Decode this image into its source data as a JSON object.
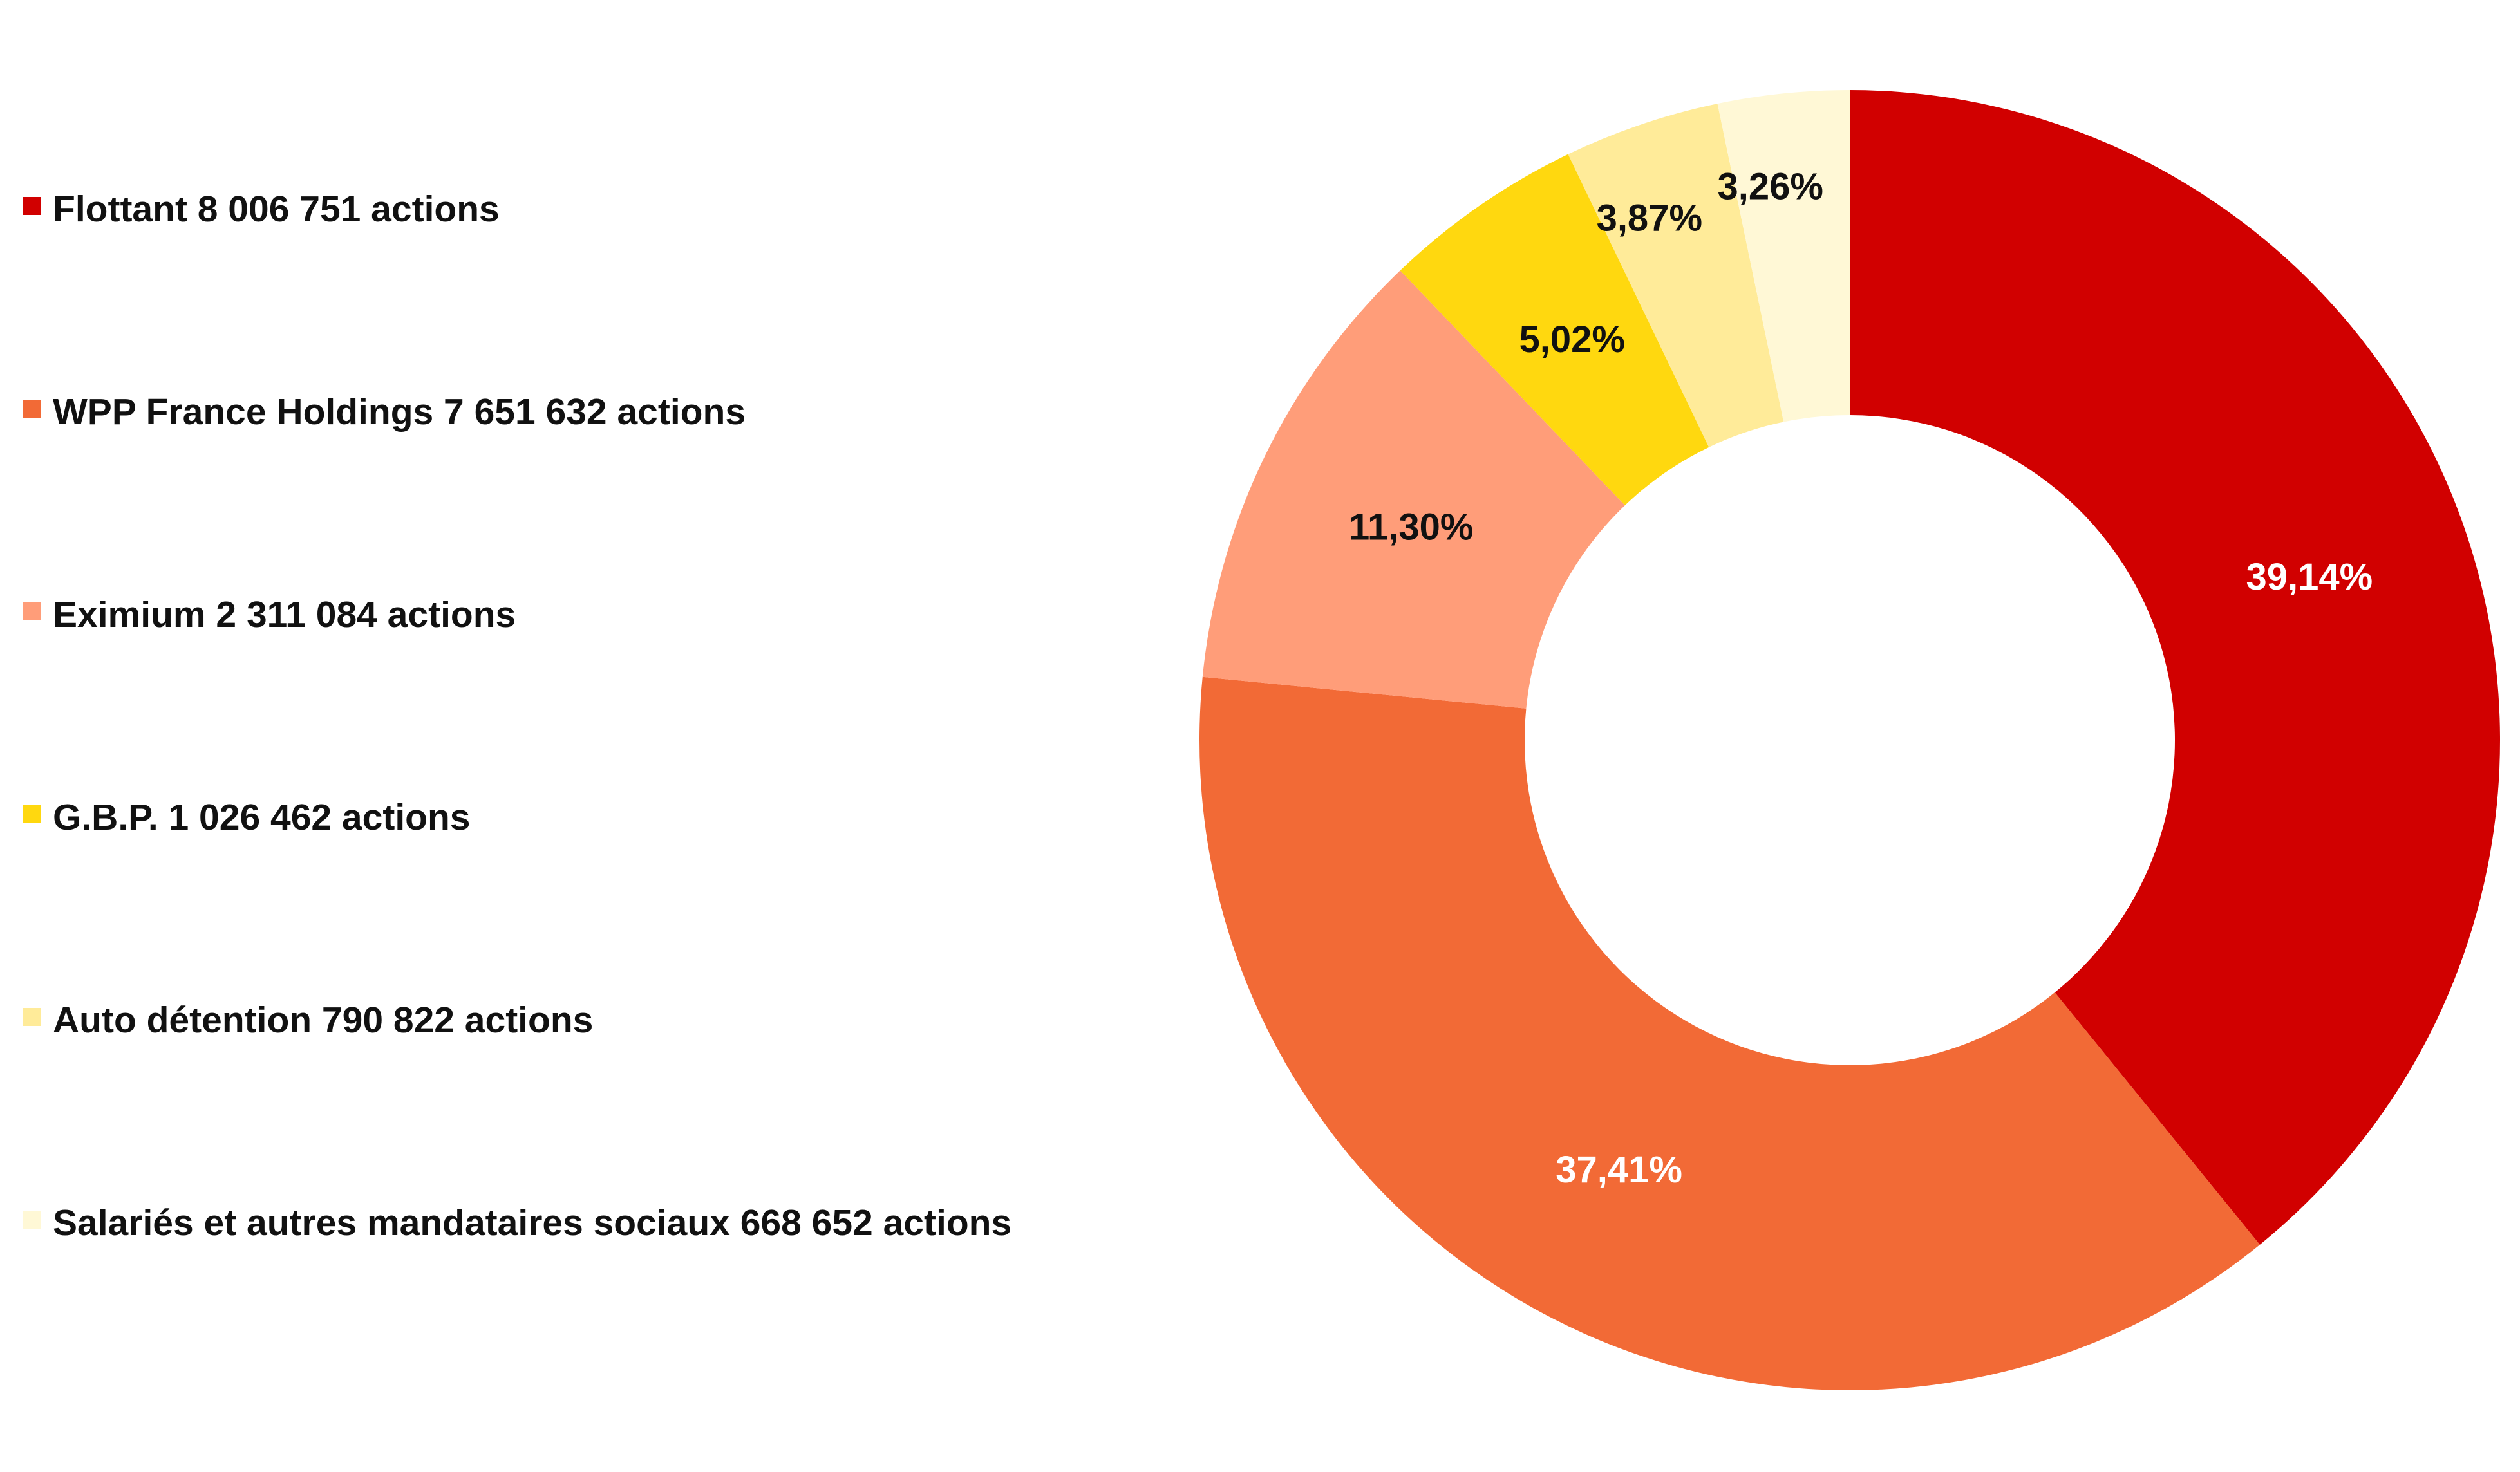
{
  "chart_data": {
    "type": "pie",
    "style": "donut",
    "legend_position": "left",
    "slices": [
      {
        "label": "Flottant 8 006 751 actions",
        "value": 39.14,
        "value_label": "39,14%",
        "color": "#D10000",
        "label_color": "#ffffff"
      },
      {
        "label": "WPP France Holdings 7 651 632 actions",
        "value": 37.41,
        "value_label": "37,41%",
        "color": "#F26A36",
        "label_color": "#ffffff"
      },
      {
        "label": "Eximium 2 311 084 actions",
        "value": 11.3,
        "value_label": "11,30%",
        "color": "#FF9D79",
        "label_color": "#111111"
      },
      {
        "label": "G.B.P. 1 026 462 actions",
        "value": 5.02,
        "value_label": "5,02%",
        "color": "#FFD80F",
        "label_color": "#111111"
      },
      {
        "label": "Auto détention 790 822 actions",
        "value": 3.87,
        "value_label": "3,87%",
        "color": "#FFEB99",
        "label_color": "#111111"
      },
      {
        "label": "Salariés et autres mandataires sociaux 668 652 actions",
        "value": 3.26,
        "value_label": "3,26%",
        "color": "#FFF8D6",
        "label_color": "#111111"
      }
    ]
  }
}
